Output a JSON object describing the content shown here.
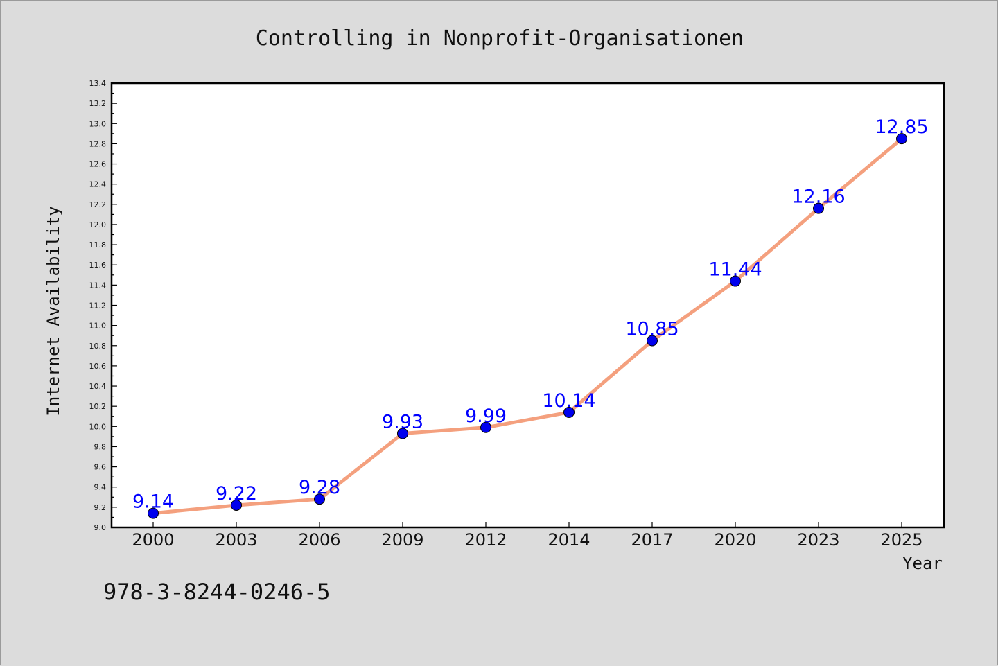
{
  "chart_data": {
    "type": "line",
    "title": "Controlling in Nonprofit-Organisationen",
    "xlabel": "Year",
    "ylabel": "Internet Availability",
    "categories": [
      "2000",
      "2003",
      "2006",
      "2009",
      "2012",
      "2014",
      "2017",
      "2020",
      "2023",
      "2025"
    ],
    "series": [
      {
        "values": [
          9.14,
          9.22,
          9.28,
          9.93,
          9.99,
          10.14,
          10.85,
          11.44,
          12.16,
          12.85
        ],
        "data_labels": [
          "9.14",
          "9.22",
          "9.28",
          "9.93",
          "9.99",
          "10.14",
          "10.85",
          "11.44",
          "12.16",
          "12.85"
        ]
      }
    ],
    "ylim": [
      9.0,
      13.4
    ],
    "yticks": [
      "9.0",
      "9.2",
      "9.4",
      "9.6",
      "9.8",
      "10.0",
      "10.2",
      "10.4",
      "10.6",
      "10.8",
      "11.0",
      "11.2",
      "11.4",
      "11.6",
      "11.8",
      "12.0",
      "12.2",
      "12.4",
      "12.6",
      "12.8",
      "13.0",
      "13.2",
      "13.4"
    ],
    "grid": false,
    "colors": {
      "line": "#f4a07e",
      "marker": "#0000ee",
      "label": "#0000ff"
    }
  },
  "footer": {
    "isbn": "978-3-8244-0246-5"
  }
}
